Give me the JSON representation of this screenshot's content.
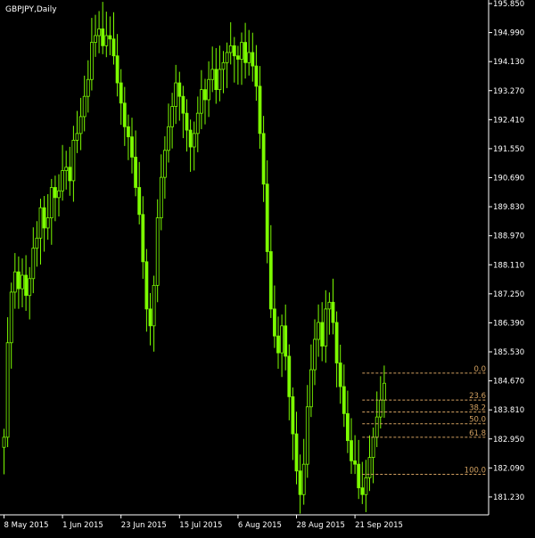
{
  "window": {
    "title": "GBPJPY,Daily"
  },
  "chart_data": {
    "type": "candlestick",
    "symbol": "GBPJPY",
    "timeframe": "Daily",
    "colors": {
      "background": "#000000",
      "candle": "#7CFC00",
      "axis": "#FFFFFF",
      "fibonacci": "#D2A060"
    },
    "ylim": [
      180.7,
      195.85
    ],
    "y_ticks": [
      "195.850",
      "194.990",
      "194.130",
      "193.270",
      "192.410",
      "191.550",
      "190.690",
      "189.830",
      "188.970",
      "188.110",
      "187.250",
      "186.390",
      "185.530",
      "184.670",
      "183.810",
      "182.950",
      "182.090",
      "181.230"
    ],
    "x_ticks": [
      {
        "label": "8 May 2015",
        "index": 0
      },
      {
        "label": "1 Jun 2015",
        "index": 16
      },
      {
        "label": "23 Jun 2015",
        "index": 32
      },
      {
        "label": "15 Jul 2015",
        "index": 48
      },
      {
        "label": "6 Aug 2015",
        "index": 64
      },
      {
        "label": "28 Aug 2015",
        "index": 80
      },
      {
        "label": "21 Sep 2015",
        "index": 96
      }
    ],
    "close": [
      183.0,
      185.8,
      187.3,
      187.9,
      187.4,
      187.8,
      187.2,
      187.7,
      188.6,
      188.9,
      189.8,
      189.2,
      189.5,
      190.4,
      190.1,
      190.3,
      190.9,
      191.0,
      190.6,
      191.8,
      192.0,
      192.5,
      193.1,
      193.6,
      194.7,
      194.9,
      195.1,
      194.6,
      194.9,
      194.8,
      194.3,
      193.5,
      192.9,
      192.2,
      191.9,
      191.3,
      190.4,
      189.6,
      188.2,
      186.8,
      186.3,
      187.5,
      189.5,
      190.7,
      191.5,
      192.2,
      192.8,
      193.5,
      193.1,
      192.6,
      192.1,
      191.6,
      192.0,
      192.6,
      193.3,
      193.0,
      193.6,
      193.9,
      193.3,
      193.9,
      194.1,
      194.4,
      194.6,
      194.3,
      194.2,
      194.7,
      194.1,
      194.4,
      194.0,
      193.4,
      192.0,
      190.5,
      188.5,
      186.8,
      186.0,
      185.5,
      186.3,
      185.4,
      184.2,
      183.1,
      182.0,
      181.3,
      182.2,
      183.9,
      185.0,
      185.9,
      186.4,
      185.7,
      186.8,
      187.0,
      186.4,
      185.2,
      184.5,
      183.7,
      182.9,
      182.3,
      182.2,
      181.5,
      181.3,
      181.8,
      182.4,
      183.0,
      183.6,
      184.1,
      184.6
    ],
    "fibonacci": {
      "levels": [
        {
          "label": "0.0",
          "price": 184.9
        },
        {
          "label": "23.6",
          "price": 184.1
        },
        {
          "label": "38.2",
          "price": 183.75
        },
        {
          "label": "50.0",
          "price": 183.4
        },
        {
          "label": "61.8",
          "price": 183.0
        },
        {
          "label": "100.0",
          "price": 181.9
        }
      ],
      "start_index": 98
    }
  }
}
